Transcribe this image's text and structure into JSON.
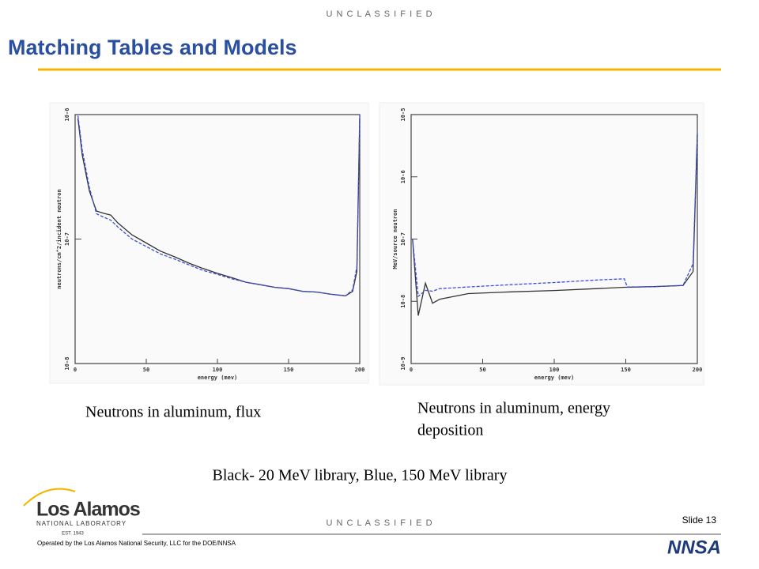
{
  "header": {
    "classification": "U N C L A S S I F I E D",
    "title": "Matching Tables and Models"
  },
  "chart_data": [
    {
      "type": "line",
      "x_label": "energy (mev)",
      "y_label": "neutrons/cm^2/incident neutron",
      "log_scale": true,
      "x": [
        2,
        5,
        10,
        15,
        20,
        25,
        30,
        40,
        50,
        60,
        70,
        80,
        90,
        100,
        110,
        120,
        130,
        140,
        150,
        160,
        170,
        180,
        190,
        195,
        198,
        200
      ],
      "series": [
        {
          "color": "#333333",
          "values": [
            9.3e-07,
            4.75e-07,
            2.44e-07,
            1.68e-07,
            1.61e-07,
            1.56e-07,
            1.35e-07,
            1.08e-07,
            9.3e-08,
            8e-08,
            7.2e-08,
            6.4e-08,
            5.8e-08,
            5.3e-08,
            4.9e-08,
            4.5e-08,
            4.3e-08,
            4.1e-08,
            4e-08,
            3.8e-08,
            3.75e-08,
            3.6e-08,
            3.5e-08,
            3.8e-08,
            5.5e-08,
            9.3e-07
          ]
        },
        {
          "color": "#3b4fd8",
          "values": [
            9.8e-07,
            5.2e-07,
            2.6e-07,
            1.6e-07,
            1.5e-07,
            1.42e-07,
            1.25e-07,
            1e-07,
            8.7e-08,
            7.6e-08,
            6.9e-08,
            6.2e-08,
            5.6e-08,
            5.2e-08,
            4.8e-08,
            4.5e-08,
            4.3e-08,
            4.1e-08,
            4e-08,
            3.8e-08,
            3.75e-08,
            3.6e-08,
            3.5e-08,
            3.9e-08,
            6e-08,
            1e-06
          ]
        }
      ],
      "xlim": [
        0,
        200
      ],
      "xticks": [
        0,
        50,
        100,
        150,
        200
      ],
      "ylim": [
        1e-08,
        1e-06
      ],
      "yticks": [
        {
          "value": 1e-08,
          "label": "10-8"
        },
        {
          "value": 1e-07,
          "label": "10-7"
        },
        {
          "value": 1e-06,
          "label": "10-6"
        }
      ]
    },
    {
      "type": "line",
      "x_label": "energy (mev)",
      "y_label": "MeV/source neutron",
      "log_scale": true,
      "x": [
        1,
        5,
        10,
        15,
        20,
        40,
        70,
        100,
        130,
        149,
        151,
        170,
        190,
        197,
        200
      ],
      "series": [
        {
          "color": "#333333",
          "values": [
            1e-07,
            5.9e-09,
            1.95e-08,
            9.3e-09,
            1.08e-08,
            1.33e-08,
            1.42e-08,
            1.49e-08,
            1.6e-08,
            1.68e-08,
            1.68e-08,
            1.72e-08,
            1.79e-08,
            3e-08,
            4.75e-06
          ]
        },
        {
          "color": "#3b4fd8",
          "values": [
            1e-07,
            1.2e-08,
            1.5e-08,
            1.45e-08,
            1.6e-08,
            1.7e-08,
            1.85e-08,
            2e-08,
            2.2e-08,
            2.3e-08,
            1.7e-08,
            1.72e-08,
            1.8e-08,
            4e-08,
            5e-06
          ]
        }
      ],
      "xlim": [
        0,
        200
      ],
      "xticks": [
        0,
        50,
        100,
        150,
        200
      ],
      "ylim": [
        1e-09,
        1e-05
      ],
      "yticks": [
        {
          "value": 1e-09,
          "label": "10-9"
        },
        {
          "value": 1e-08,
          "label": "10-8"
        },
        {
          "value": 1e-07,
          "label": "10-7"
        },
        {
          "value": 1e-06,
          "label": "10-6"
        },
        {
          "value": 1e-05,
          "label": "10-5"
        }
      ]
    }
  ],
  "captions": [
    "Neutrons in aluminum, flux",
    "Neutrons in aluminum, energy",
    "deposition"
  ],
  "note": "Black- 20 MeV library, Blue, 150 MeV library",
  "footer": {
    "classification": "U N C L A S S I F I E D",
    "slide": "Slide 13",
    "operator": "Operated by the Los Alamos National Security, LLC for the DOE/NNSA",
    "logo_name": "Los Alamos",
    "logo_sub": "NATIONAL LABORATORY",
    "logo_est": "EST. 1943",
    "agency": "NNSA"
  }
}
